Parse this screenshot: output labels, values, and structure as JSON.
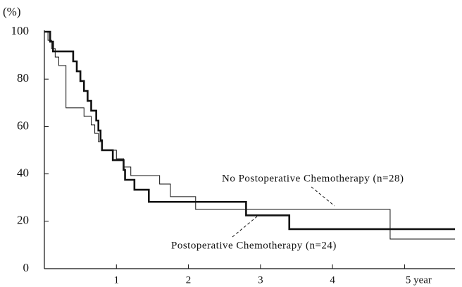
{
  "chart_data": {
    "type": "step",
    "y_unit_label": "(%)",
    "xlim": [
      0,
      5.7
    ],
    "ylim": [
      0,
      100
    ],
    "xticks": [
      1,
      2,
      3,
      4,
      {
        "value": 5,
        "label": "5 year"
      }
    ],
    "yticks": [
      0,
      20,
      40,
      60,
      80,
      100
    ],
    "series": [
      {
        "name": "No Postoperative Chemotherapy (n=28)",
        "color": "#111111",
        "line_width": 1,
        "x": [
          0,
          0.05,
          0.1,
          0.15,
          0.2,
          0.3,
          0.55,
          0.65,
          0.7,
          0.75,
          0.8,
          1.0,
          1.1,
          1.2,
          1.6,
          1.75,
          2.1,
          4.8
        ],
        "values": [
          100,
          96.4,
          92.9,
          89.3,
          85.7,
          67.9,
          64.3,
          60.7,
          57.1,
          53.6,
          50,
          46.4,
          42.9,
          39.3,
          35.7,
          30.4,
          25.0,
          12.5
        ]
      },
      {
        "name": "Postoperative Chemotherapy (n=24)",
        "color": "#111111",
        "line_width": 2.6,
        "x": [
          0,
          0.08,
          0.12,
          0.4,
          0.45,
          0.5,
          0.55,
          0.6,
          0.65,
          0.72,
          0.75,
          0.78,
          0.8,
          0.95,
          1.1,
          1.12,
          1.25,
          1.45,
          2.8,
          3.4
        ],
        "values": [
          100,
          95.8,
          91.7,
          87.5,
          83.3,
          79.2,
          75,
          70.8,
          66.7,
          62.5,
          58.3,
          54.2,
          50,
          45.8,
          41.7,
          37.5,
          33.3,
          28.2,
          22.5,
          16.7
        ]
      }
    ]
  }
}
